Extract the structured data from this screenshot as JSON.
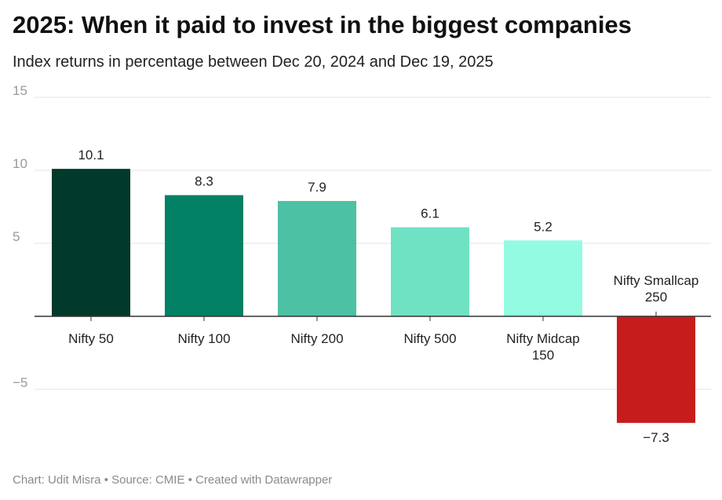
{
  "title": "2025: When it paid to invest in the biggest companies",
  "subtitle": "Index returns in percentage between Dec 20, 2024 and Dec 19, 2025",
  "footer": "Chart: Udit Misra • Source: CMIE • Created with Datawrapper",
  "chart_data": {
    "type": "bar",
    "title": "2025: When it paid to invest in the biggest companies",
    "subtitle": "Index returns in percentage between Dec 20, 2024 and Dec 19, 2025",
    "xlabel": "",
    "ylabel": "",
    "categories": [
      [
        "Nifty 50"
      ],
      [
        "Nifty 100"
      ],
      [
        "Nifty 200"
      ],
      [
        "Nifty 500"
      ],
      [
        "Nifty Midcap",
        "150"
      ],
      [
        "Nifty Smallcap",
        "250"
      ]
    ],
    "values": [
      10.1,
      8.3,
      7.9,
      6.1,
      5.2,
      -7.3
    ],
    "value_labels": [
      "10.1",
      "8.3",
      "7.9",
      "6.1",
      "5.2",
      "−7.3"
    ],
    "colors": [
      "#01392a",
      "#028164",
      "#4cc1a3",
      "#70e2c4",
      "#93fbe1",
      "#c71c1c"
    ],
    "ylim": [
      -8,
      15
    ],
    "yticks": [
      15,
      10,
      5,
      -5
    ],
    "ytick_labels": [
      "15",
      "10",
      "5",
      "−5"
    ],
    "grid": true,
    "legend": "none"
  }
}
